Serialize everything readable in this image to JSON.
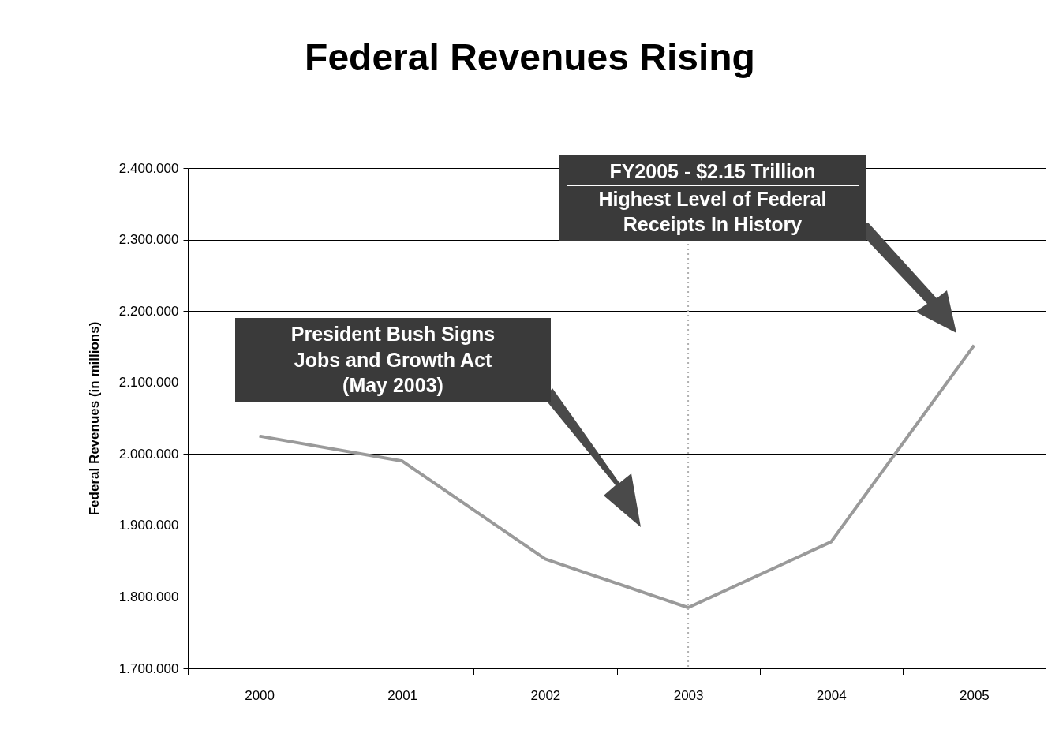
{
  "chart_data": {
    "type": "line",
    "title": "Federal Revenues Rising",
    "ylabel": "Federal Revenues (in millions)",
    "categories": [
      "2000",
      "2001",
      "2002",
      "2003",
      "2004",
      "2005"
    ],
    "series": [
      {
        "color": "#9a9a9a",
        "values": [
          2025000,
          1990000,
          1853000,
          1785000,
          1877000,
          2152000
        ]
      }
    ],
    "ylim": [
      1700000,
      2400000
    ],
    "yticks": [
      {
        "value": 1700000,
        "label": "1.700.000"
      },
      {
        "value": 1800000,
        "label": "1.800.000"
      },
      {
        "value": 1900000,
        "label": "1.900.000"
      },
      {
        "value": 2000000,
        "label": "2.000.000"
      },
      {
        "value": 2100000,
        "label": "2.100.000"
      },
      {
        "value": 2200000,
        "label": "2.200.000"
      },
      {
        "value": 2300000,
        "label": "2.300.000"
      },
      {
        "value": 2400000,
        "label": "2.400.000"
      }
    ],
    "grid": "y",
    "marker": "none",
    "line_style": "solid",
    "ref_lines": [
      {
        "axis": "x",
        "value": "2003",
        "color": "#b0b0b0",
        "line_style": "dotted"
      }
    ],
    "annotations": [
      "President Bush Signs\nJobs and Growth Act\n(May 2003)",
      "FY2005 - $2.15 Trillion\nHighest Level of Federal\nReceipts In History"
    ]
  }
}
